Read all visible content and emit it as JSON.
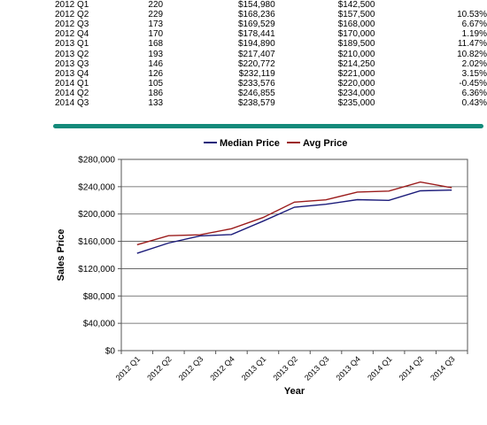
{
  "table": {
    "rows": [
      [
        "2012 Q1",
        "220",
        "$154,980",
        "$142,500",
        ""
      ],
      [
        "2012 Q2",
        "229",
        "$168,236",
        "$157,500",
        "10.53%"
      ],
      [
        "2012 Q3",
        "173",
        "$169,529",
        "$168,000",
        "6.67%"
      ],
      [
        "2012 Q4",
        "170",
        "$178,441",
        "$170,000",
        "1.19%"
      ],
      [
        "2013 Q1",
        "168",
        "$194,890",
        "$189,500",
        "11.47%"
      ],
      [
        "2013 Q2",
        "193",
        "$217,407",
        "$210,000",
        "10.82%"
      ],
      [
        "2013 Q3",
        "146",
        "$220,772",
        "$214,250",
        "2.02%"
      ],
      [
        "2013 Q4",
        "126",
        "$232,119",
        "$221,000",
        "3.15%"
      ],
      [
        "2014 Q1",
        "105",
        "$233,576",
        "$220,000",
        "-0.45%"
      ],
      [
        "2014 Q2",
        "186",
        "$246,855",
        "$234,000",
        "6.36%"
      ],
      [
        "2014 Q3",
        "133",
        "$238,579",
        "$235,000",
        "0.43%"
      ]
    ]
  },
  "colors": {
    "divider": "#138a7a",
    "median": "#1b1b7a",
    "avg": "#9b1c1c",
    "grid": "#555555"
  },
  "chart_data": {
    "type": "line",
    "xlabel": "Year",
    "ylabel": "Sales Price",
    "categories": [
      "2012 Q1",
      "2012 Q2",
      "2012 Q3",
      "2012 Q4",
      "2013 Q1",
      "2013 Q2",
      "2013 Q3",
      "2013 Q4",
      "2014 Q1",
      "2014 Q2",
      "2014 Q3"
    ],
    "series": [
      {
        "name": "Median Price",
        "values": [
          142500,
          157500,
          168000,
          170000,
          189500,
          210000,
          214250,
          221000,
          220000,
          234000,
          235000
        ]
      },
      {
        "name": "Avg Price",
        "values": [
          154980,
          168236,
          169529,
          178441,
          194890,
          217407,
          220772,
          232119,
          233576,
          246855,
          238579
        ]
      }
    ],
    "ylim": [
      0,
      280000
    ],
    "yticks": [
      0,
      40000,
      80000,
      120000,
      160000,
      200000,
      240000,
      280000
    ],
    "ytick_labels": [
      "$0",
      "$40,000",
      "$80,000",
      "$120,000",
      "$160,000",
      "$200,000",
      "$240,000",
      "$280,000"
    ],
    "grid": true,
    "legend_position": "top-center"
  }
}
